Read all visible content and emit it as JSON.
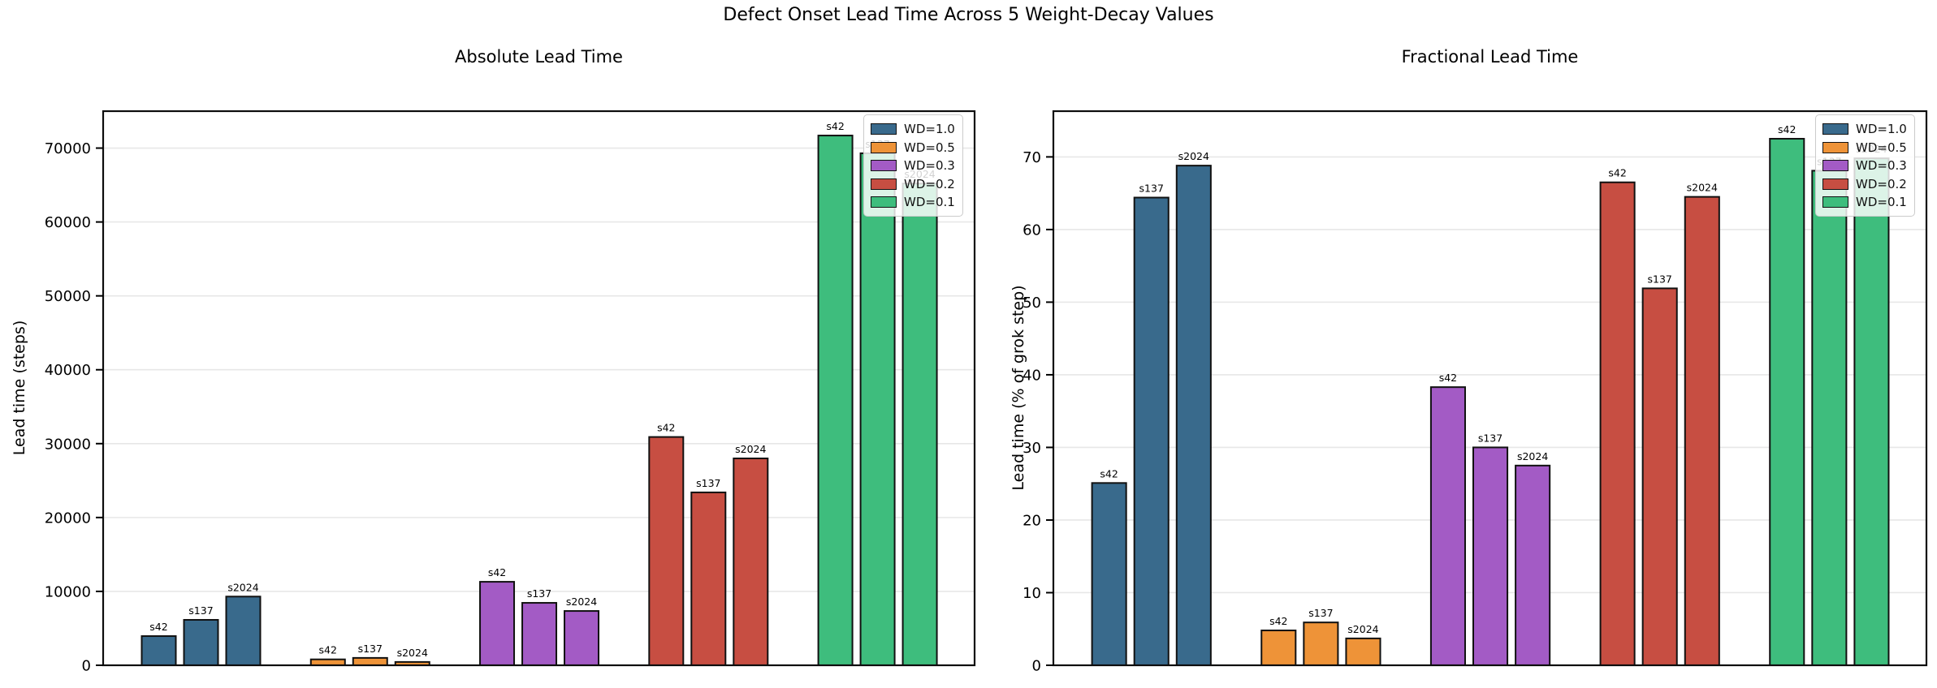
{
  "figure": {
    "title": "Defect Onset Lead Time Across 5 Weight-Decay Values"
  },
  "seeds": [
    "s42",
    "s137",
    "s2024"
  ],
  "legend": {
    "entries": [
      {
        "label": "WD=1.0",
        "color": "#396A8C"
      },
      {
        "label": "WD=0.5",
        "color": "#EE9338"
      },
      {
        "label": "WD=0.3",
        "color": "#A35BC5"
      },
      {
        "label": "WD=0.2",
        "color": "#C74E42"
      },
      {
        "label": "WD=0.1",
        "color": "#3EBD7D"
      }
    ]
  },
  "chart_data": [
    {
      "type": "bar",
      "title": "Absolute Lead Time",
      "ylabel": "Lead time (steps)",
      "xlabel": "",
      "categories": [
        "WD=1.0",
        "WD=0.5",
        "WD=0.3",
        "WD=0.2",
        "WD=0.1"
      ],
      "bar_labels_per_group": [
        "s42",
        "s137",
        "s2024"
      ],
      "series": [
        {
          "name": "WD=1.0",
          "color": "#396A8C",
          "values": [
            3950,
            6150,
            9300
          ]
        },
        {
          "name": "WD=0.5",
          "color": "#EE9338",
          "values": [
            800,
            1000,
            450
          ]
        },
        {
          "name": "WD=0.3",
          "color": "#A35BC5",
          "values": [
            11300,
            8450,
            7350
          ]
        },
        {
          "name": "WD=0.2",
          "color": "#C74E42",
          "values": [
            30900,
            23400,
            28000
          ]
        },
        {
          "name": "WD=0.1",
          "color": "#3EBD7D",
          "values": [
            71700,
            69300,
            65200
          ]
        }
      ],
      "yticks": [
        0,
        10000,
        20000,
        30000,
        40000,
        50000,
        60000,
        70000
      ],
      "ylim": [
        0,
        75000
      ],
      "grid": true,
      "legend_position": "upper right"
    },
    {
      "type": "bar",
      "title": "Fractional Lead Time",
      "ylabel": "Lead time (% of grok step)",
      "xlabel": "",
      "categories": [
        "WD=1.0",
        "WD=0.5",
        "WD=0.3",
        "WD=0.2",
        "WD=0.1"
      ],
      "bar_labels_per_group": [
        "s42",
        "s137",
        "s2024"
      ],
      "series": [
        {
          "name": "WD=1.0",
          "color": "#396A8C",
          "values": [
            25.1,
            64.4,
            68.8
          ]
        },
        {
          "name": "WD=0.5",
          "color": "#EE9338",
          "values": [
            4.8,
            5.9,
            3.7
          ]
        },
        {
          "name": "WD=0.3",
          "color": "#A35BC5",
          "values": [
            38.3,
            30.0,
            27.5
          ]
        },
        {
          "name": "WD=0.2",
          "color": "#C74E42",
          "values": [
            66.5,
            51.9,
            64.5
          ]
        },
        {
          "name": "WD=0.1",
          "color": "#3EBD7D",
          "values": [
            72.5,
            68.1,
            69.8
          ]
        }
      ],
      "yticks": [
        0,
        10,
        20,
        30,
        40,
        50,
        60,
        70
      ],
      "ylim": [
        0,
        76.3
      ],
      "grid": true,
      "legend_position": "upper right"
    }
  ]
}
